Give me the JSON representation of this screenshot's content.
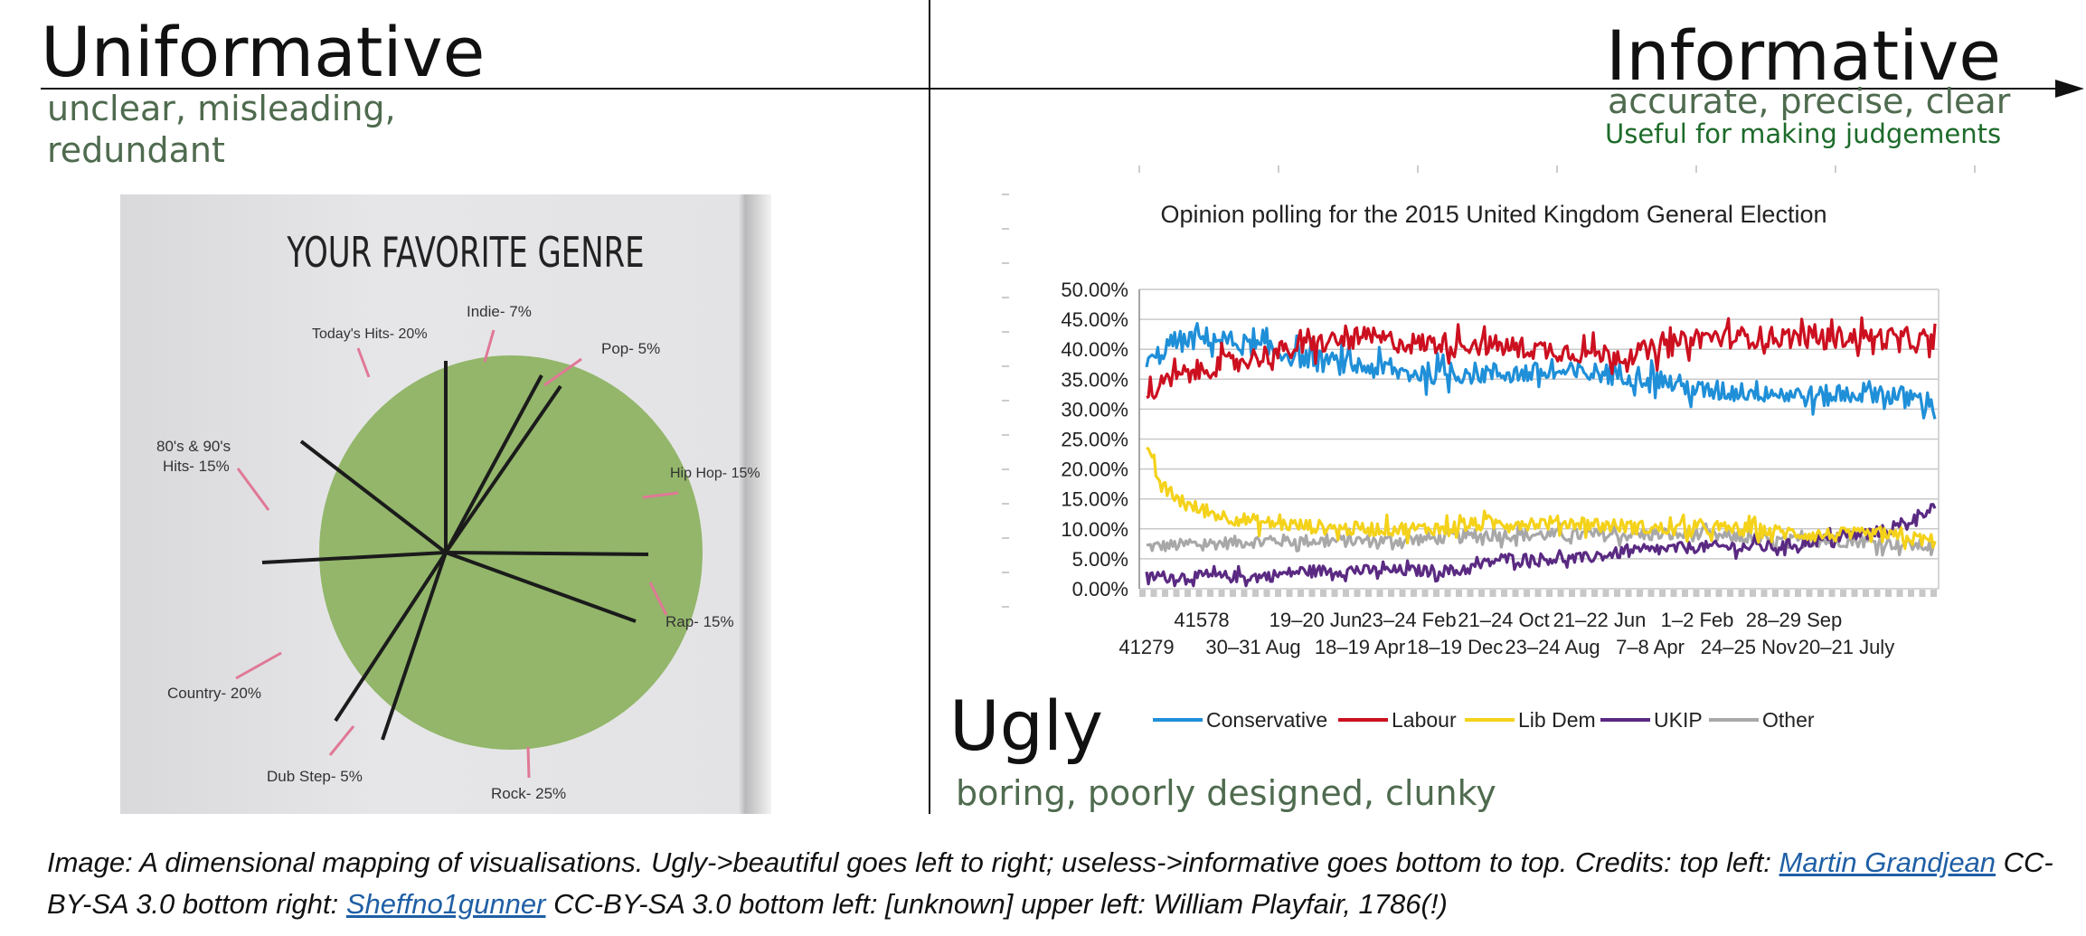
{
  "quadrants": {
    "top_left": {
      "title": "Uniformative",
      "subtitle": "unclear, misleading, redundant"
    },
    "top_right": {
      "title": "Informative",
      "subtitle": "accurate, precise, clear",
      "note": "Useful for making judgements"
    },
    "bottom_right": {
      "title": "Ugly",
      "subtitle": "boring,  poorly designed, clunky"
    }
  },
  "colors": {
    "subtitle_green": "#4f6b4f",
    "note_green": "#1d6b2a",
    "pie_fill": "#93b66a",
    "conservative": "#1f8fd8",
    "labour": "#cc1020",
    "lib_dem": "#f4d21a",
    "ukip": "#5a2a82",
    "other": "#a8a8a8"
  },
  "pie_chart": {
    "title": "YOUR FAVORITE GENRE",
    "slices": [
      {
        "label": "Today's Hits- 20%"
      },
      {
        "label": "Indie- 7%"
      },
      {
        "label": "Pop- 5%"
      },
      {
        "label": "Hip Hop- 15%"
      },
      {
        "label": "Rap- 15%"
      },
      {
        "label": "Rock- 25%"
      },
      {
        "label": "Dub Step- 5%"
      },
      {
        "label": "Country- 20%"
      },
      {
        "label": "80's & 90's Hits- 15%"
      }
    ]
  },
  "chart_data": {
    "type": "line",
    "title": "Opinion polling for the 2015 United Kingdom General Election",
    "xlabel": "",
    "ylabel": "",
    "ylim": [
      0,
      50
    ],
    "y_tick_labels": [
      "50.00%",
      "45.00%",
      "40.00%",
      "35.00%",
      "30.00%",
      "25.00%",
      "20.00%",
      "15.00%",
      "10.00%",
      "5.00%",
      "0.00%"
    ],
    "x_tick_labels_row1": [
      "41578",
      "19–20 Jun",
      "23–24 Feb",
      "21–24 Oct",
      "21–22 Jun",
      "1–2 Feb",
      "28–29 Sep"
    ],
    "x_tick_labels_row2": [
      "41279",
      "30–31 Aug",
      "18–19 Apr",
      "18–19 Dec",
      "23–24 Aug",
      "7–8 Apr",
      "24–25 Nov",
      "20–21 July"
    ],
    "legend_position": "bottom",
    "series": [
      {
        "name": "Conservative",
        "color": "#1f8fd8",
        "keys": [
          [
            0,
            37
          ],
          [
            0.03,
            41
          ],
          [
            0.08,
            42
          ],
          [
            0.15,
            40
          ],
          [
            0.22,
            38
          ],
          [
            0.28,
            37
          ],
          [
            0.33,
            36
          ],
          [
            0.4,
            36
          ],
          [
            0.5,
            36
          ],
          [
            0.6,
            36
          ],
          [
            0.65,
            35
          ],
          [
            0.7,
            33
          ],
          [
            0.78,
            33
          ],
          [
            0.85,
            32
          ],
          [
            0.92,
            33
          ],
          [
            1,
            31
          ]
        ],
        "amp": 2.6
      },
      {
        "name": "Labour",
        "color": "#cc1020",
        "keys": [
          [
            0,
            32
          ],
          [
            0.03,
            35
          ],
          [
            0.08,
            37
          ],
          [
            0.15,
            39
          ],
          [
            0.22,
            41
          ],
          [
            0.28,
            42
          ],
          [
            0.33,
            41
          ],
          [
            0.4,
            41
          ],
          [
            0.5,
            40
          ],
          [
            0.6,
            39
          ],
          [
            0.65,
            40
          ],
          [
            0.7,
            42
          ],
          [
            0.78,
            42
          ],
          [
            0.85,
            42
          ],
          [
            0.92,
            42
          ],
          [
            1,
            41
          ]
        ],
        "amp": 2.6
      },
      {
        "name": "Lib Dem",
        "color": "#f4d21a",
        "keys": [
          [
            0,
            23
          ],
          [
            0.02,
            17
          ],
          [
            0.05,
            14
          ],
          [
            0.1,
            12
          ],
          [
            0.15,
            11
          ],
          [
            0.25,
            10
          ],
          [
            0.35,
            10
          ],
          [
            0.45,
            11
          ],
          [
            0.55,
            11
          ],
          [
            0.65,
            10
          ],
          [
            0.75,
            10
          ],
          [
            0.85,
            9
          ],
          [
            0.92,
            9
          ],
          [
            1,
            8
          ]
        ],
        "amp": 1.7
      },
      {
        "name": "UKIP",
        "color": "#5a2a82",
        "keys": [
          [
            0,
            2
          ],
          [
            0.1,
            2
          ],
          [
            0.15,
            2
          ],
          [
            0.2,
            3
          ],
          [
            0.3,
            3
          ],
          [
            0.35,
            3
          ],
          [
            0.4,
            3
          ],
          [
            0.45,
            5
          ],
          [
            0.55,
            5
          ],
          [
            0.6,
            6
          ],
          [
            0.7,
            7
          ],
          [
            0.8,
            7
          ],
          [
            0.9,
            9
          ],
          [
            0.95,
            10
          ],
          [
            1,
            14
          ]
        ],
        "amp": 1.4
      },
      {
        "name": "Other",
        "color": "#a8a8a8",
        "keys": [
          [
            0,
            7
          ],
          [
            0.15,
            8
          ],
          [
            0.3,
            8
          ],
          [
            0.45,
            9
          ],
          [
            0.55,
            9
          ],
          [
            0.6,
            9
          ],
          [
            0.7,
            9
          ],
          [
            0.8,
            8
          ],
          [
            0.9,
            8
          ],
          [
            1,
            7
          ]
        ],
        "amp": 1.5
      }
    ]
  },
  "caption": {
    "text1": "Image: A dimensional mapping of visualisations. Ugly->beautiful goes left to right; useless->informative goes bottom to top. Credits: top left: ",
    "link1": "Martin Grandjean",
    "text2": " CC-BY-SA 3.0 bottom right: ",
    "link2": "Sheffno1gunner",
    "text3": " CC-BY-SA 3.0 bottom left: [unknown] upper left: William Playfair, 1786(!)"
  }
}
